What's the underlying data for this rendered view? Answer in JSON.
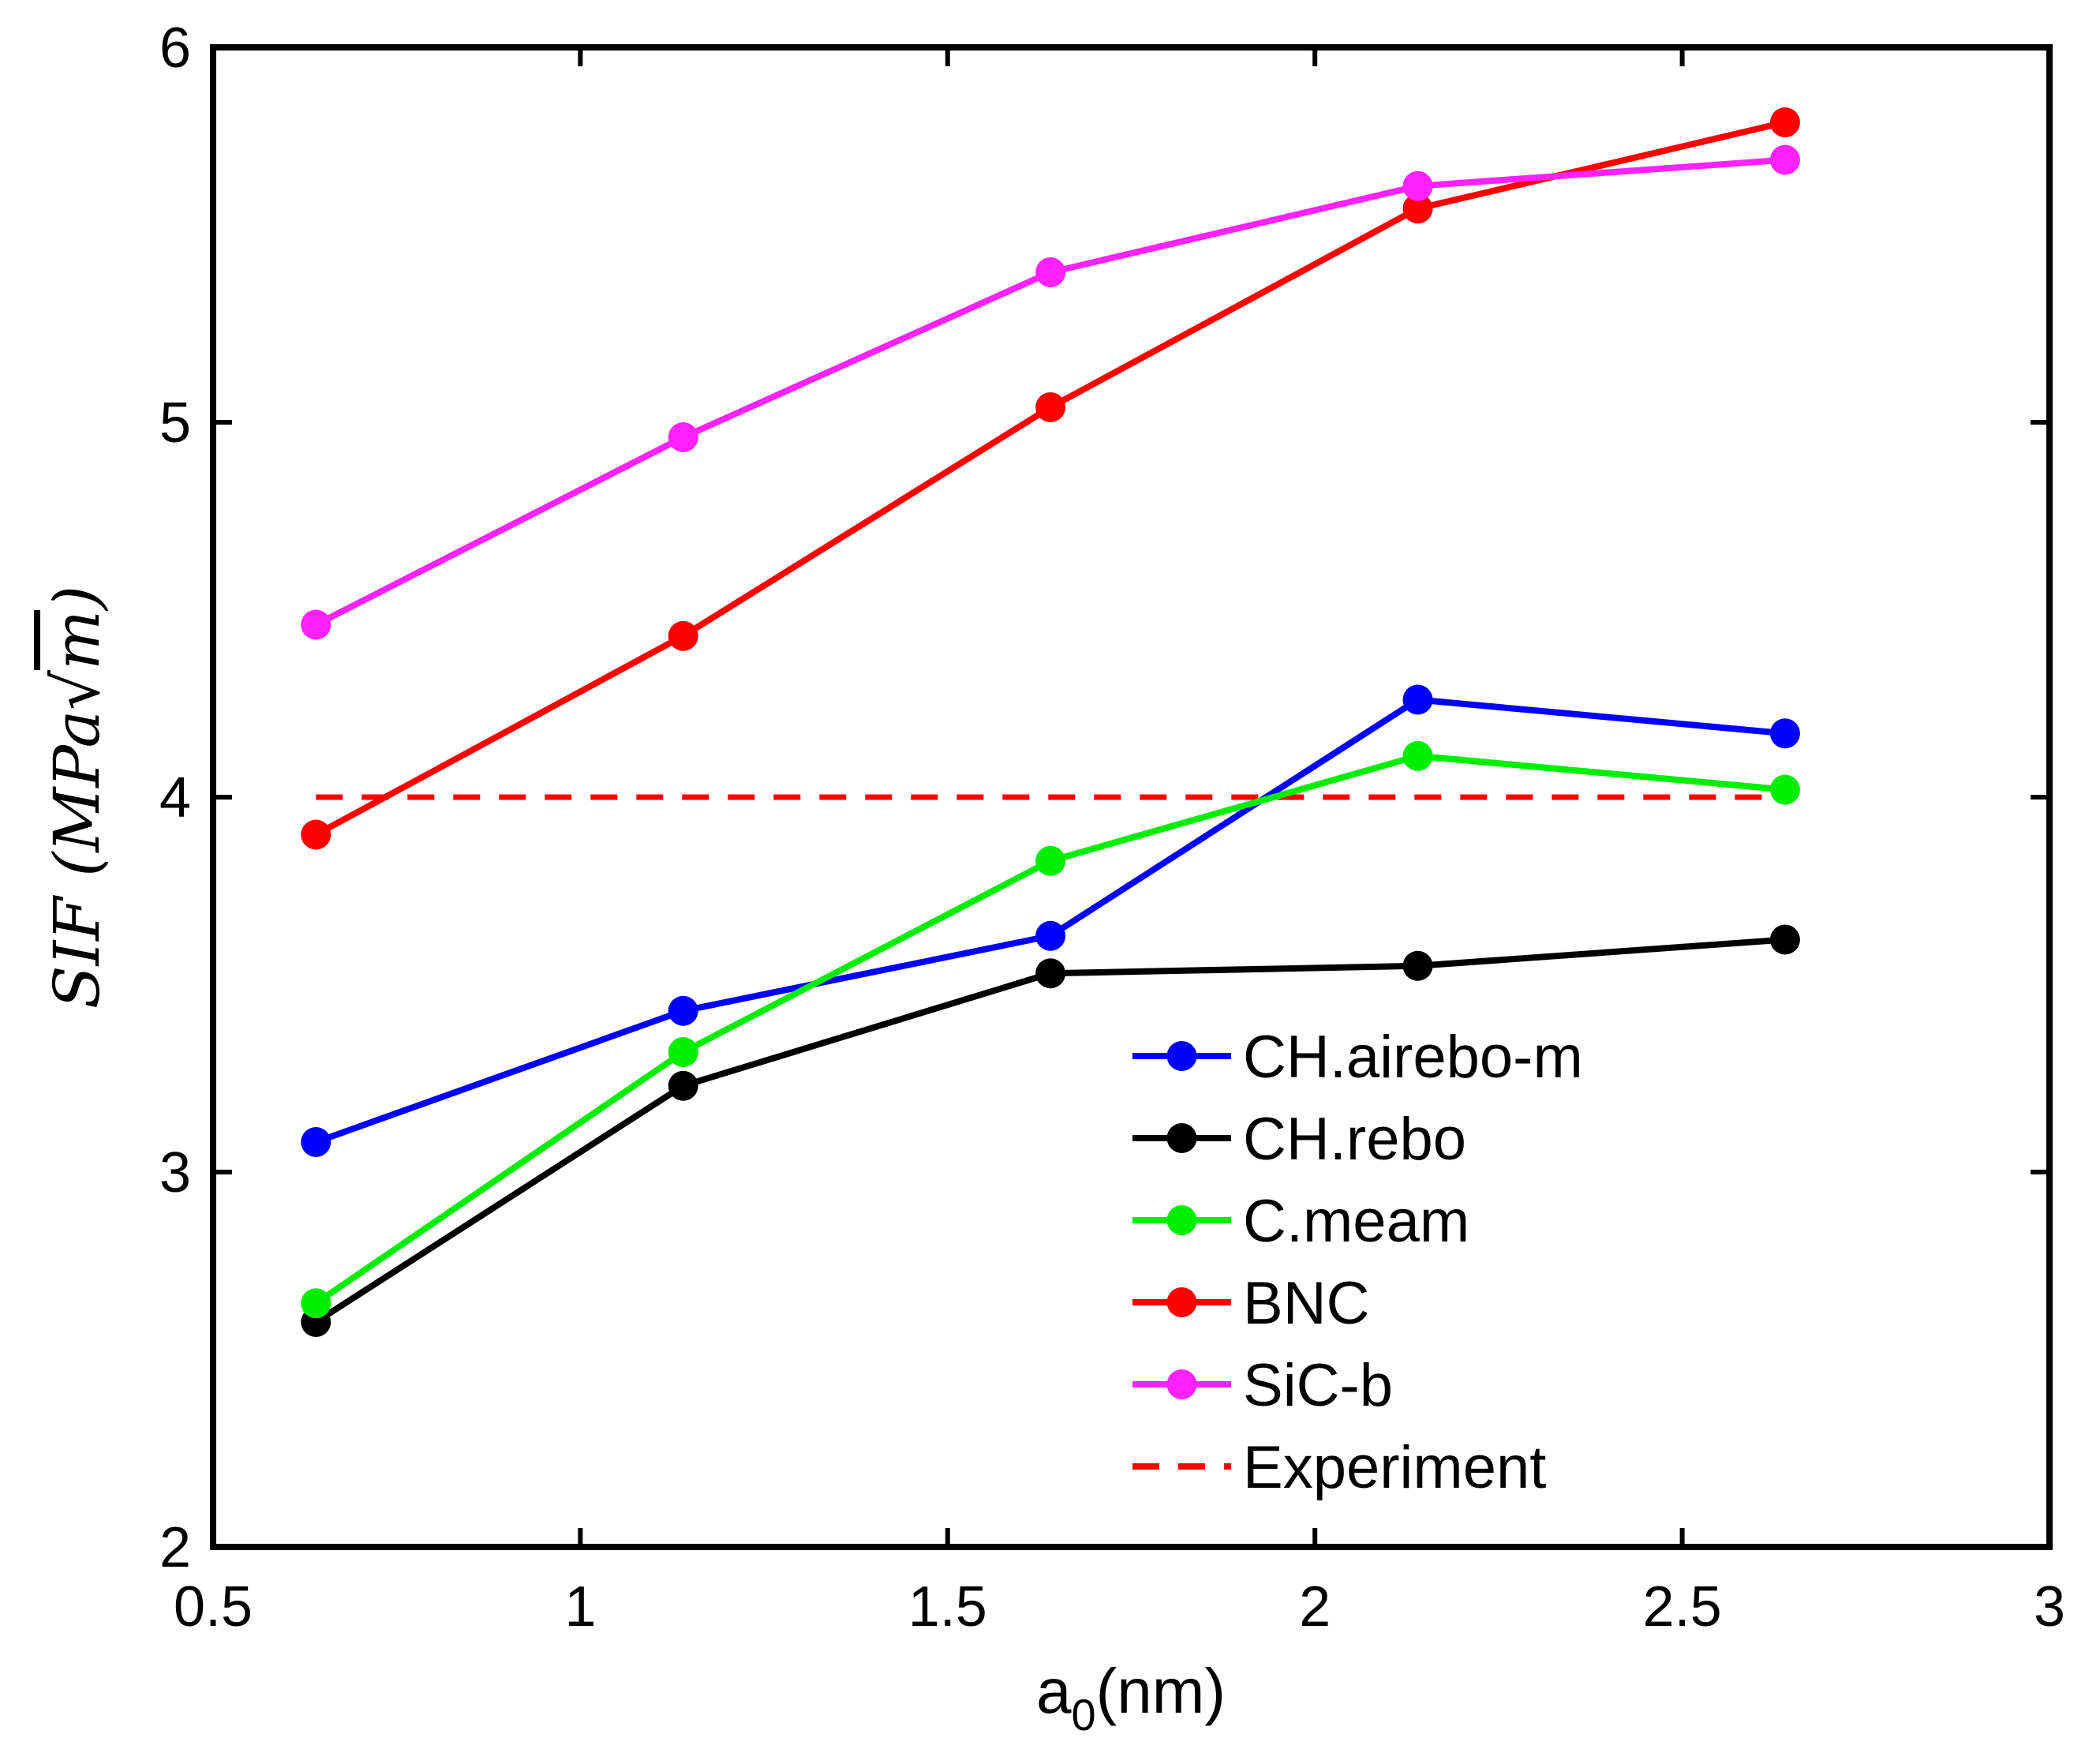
{
  "chart_data": {
    "type": "line",
    "title": "",
    "xlabel": "a0(nm)",
    "xlabel_base": "a",
    "xlabel_sub": "0",
    "xlabel_rest": "(nm)",
    "ylabel": "SIF (MPa√m)",
    "ylabel_main": "SIF (MPa",
    "ylabel_radical": "√",
    "ylabel_radicand": "m",
    "ylabel_close": ")",
    "xlim": [
      0.5,
      3
    ],
    "ylim": [
      2,
      6
    ],
    "xticks": [
      0.5,
      1,
      1.5,
      2,
      2.5,
      3
    ],
    "xtick_labels": [
      "0.5",
      "1",
      "1.5",
      "2",
      "2.5",
      "3"
    ],
    "yticks": [
      2,
      3,
      4,
      5,
      6
    ],
    "ytick_labels": [
      "2",
      "3",
      "4",
      "5",
      "6"
    ],
    "grid": false,
    "legend_position": "bottom-right",
    "x": [
      0.64,
      1.14,
      1.64,
      2.14,
      2.64
    ],
    "series": [
      {
        "name": "CH.airebo-m",
        "color": "#0000ff",
        "style": "solid",
        "marker": "circle",
        "values": [
          3.08,
          3.43,
          3.63,
          4.26,
          4.17
        ]
      },
      {
        "name": "CH.rebo",
        "color": "#000000",
        "style": "solid",
        "marker": "circle",
        "values": [
          2.6,
          3.23,
          3.53,
          3.55,
          3.62
        ]
      },
      {
        "name": "C.meam",
        "color": "#00ee00",
        "style": "solid",
        "marker": "circle",
        "values": [
          2.65,
          3.32,
          3.83,
          4.11,
          4.02
        ]
      },
      {
        "name": "BNC",
        "color": "#ff0000",
        "style": "solid",
        "marker": "circle",
        "values": [
          3.9,
          4.43,
          5.04,
          5.57,
          5.8
        ]
      },
      {
        "name": "SiC-b",
        "color": "#ff22ff",
        "style": "solid",
        "marker": "circle",
        "values": [
          4.46,
          4.96,
          5.4,
          5.63,
          5.7
        ]
      }
    ],
    "reference_lines": [
      {
        "name": "Experiment",
        "color": "#ff0000",
        "style": "dashed",
        "y": 4.0,
        "x_range": [
          0.64,
          2.64
        ]
      }
    ]
  }
}
